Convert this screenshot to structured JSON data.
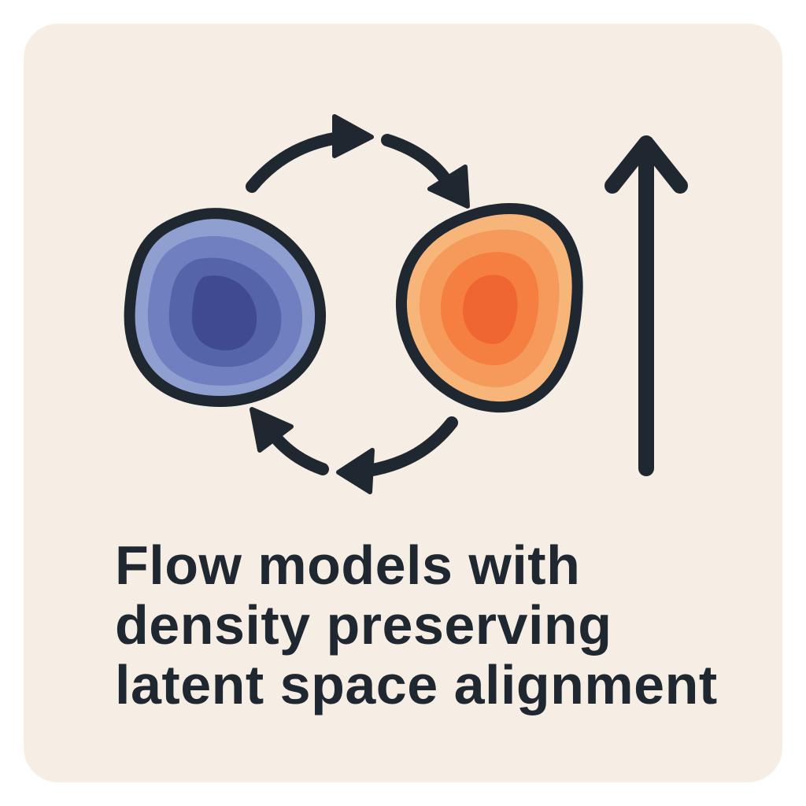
{
  "title": {
    "lines": [
      "Flow models with",
      "density preserving",
      "latent space alignment"
    ]
  },
  "colors": {
    "background": "#f6eee4",
    "ink": "#1f2731",
    "blue_contours": [
      "#8f9fd0",
      "#6f7fc0",
      "#5563a9",
      "#3f4a90"
    ],
    "orange_contours": [
      "#f7b57a",
      "#f69a5c",
      "#f47f40",
      "#f06633"
    ]
  },
  "icons": [
    "blue-density-blob",
    "orange-density-blob",
    "cycle-arrows",
    "up-arrow"
  ]
}
